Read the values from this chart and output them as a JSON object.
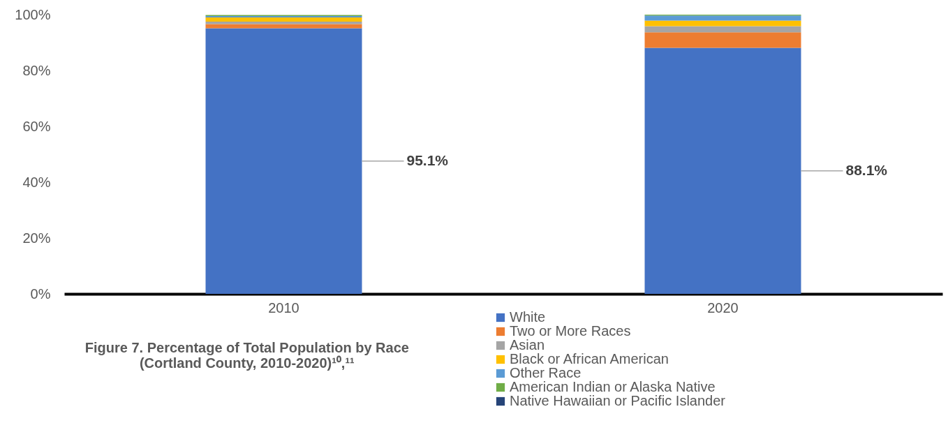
{
  "chart_data": {
    "type": "bar",
    "stacked": true,
    "title": "Figure 7. Percentage of Total Population by Race",
    "subtitle": "(Cortland County, 2010-2020)¹⁰,¹¹",
    "categories": [
      "2010",
      "2020"
    ],
    "series": [
      {
        "name": "White",
        "color": "#4472c4",
        "values": [
          95.1,
          88.1
        ],
        "value_labels": [
          "95.1%",
          "88.1%"
        ]
      },
      {
        "name": "Two or More Races",
        "color": "#ed7d31",
        "values": [
          1.5,
          5.6
        ]
      },
      {
        "name": "Asian",
        "color": "#a5a5a5",
        "values": [
          0.9,
          2.2
        ]
      },
      {
        "name": "Black or African American",
        "color": "#ffc000",
        "values": [
          1.5,
          2.0
        ]
      },
      {
        "name": "Other Race",
        "color": "#5b9bd5",
        "values": [
          0.5,
          1.8
        ]
      },
      {
        "name": "American Indian or Alaska Native",
        "color": "#70ad47",
        "values": [
          0.4,
          0.3
        ]
      },
      {
        "name": "Native Hawaiian or Pacific Islander",
        "color": "#264478",
        "values": [
          null,
          0.0
        ]
      }
    ],
    "ylim": [
      0,
      100
    ],
    "yticks": [
      {
        "value": 0,
        "label": "0%"
      },
      {
        "value": 20,
        "label": "20%"
      },
      {
        "value": 40,
        "label": "40%"
      },
      {
        "value": 60,
        "label": "60%"
      },
      {
        "value": 80,
        "label": "80%"
      },
      {
        "value": 100,
        "label": "100%"
      }
    ],
    "grid": false,
    "legend": "bottom"
  }
}
